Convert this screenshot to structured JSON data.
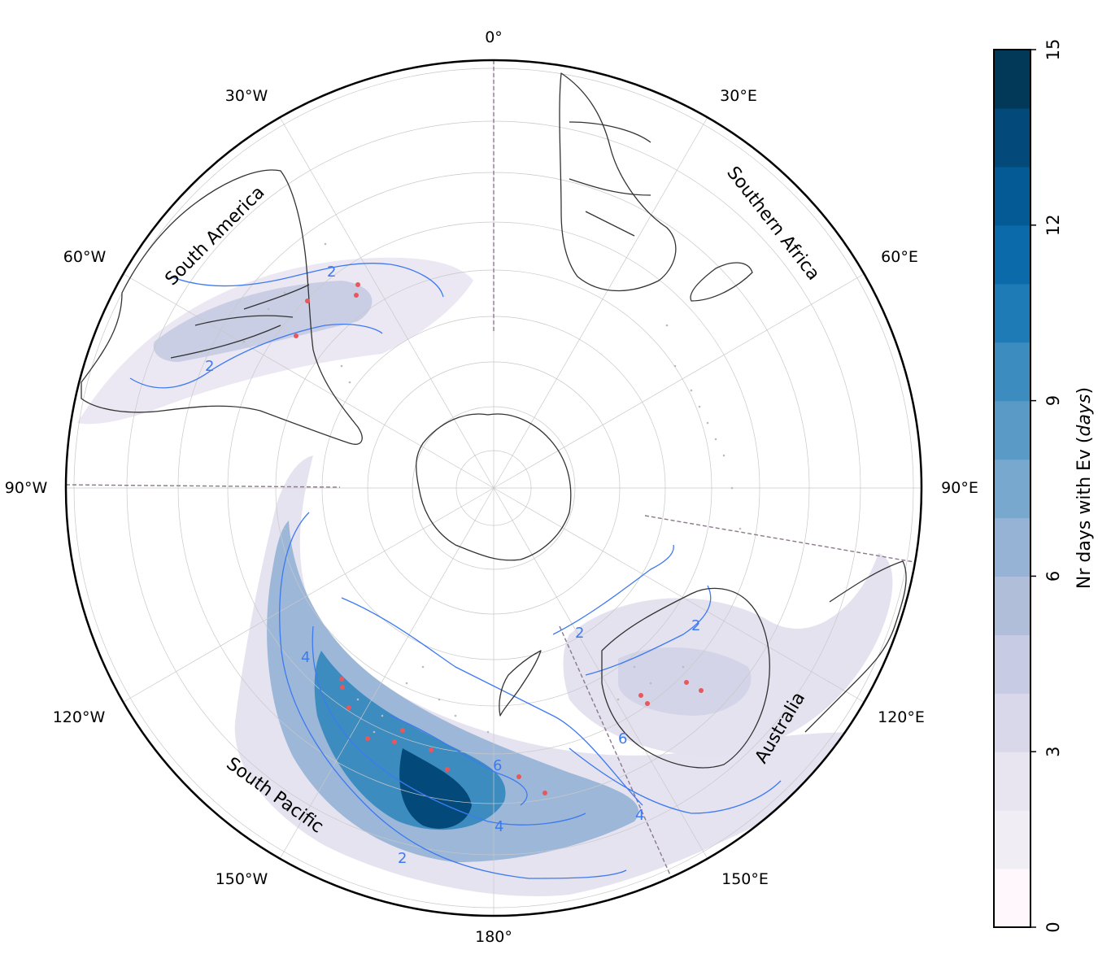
{
  "map": {
    "projection": "south-polar-stereographic",
    "meridian_labels": {
      "lon_0": "0°",
      "lon_30e": "30°E",
      "lon_60e": "60°E",
      "lon_90e": "90°E",
      "lon_120e": "120°E",
      "lon_150e": "150°E",
      "lon_180": "180°",
      "lon_150w": "150°W",
      "lon_120w": "120°W",
      "lon_90w": "90°W",
      "lon_60w": "60°W",
      "lon_30w": "30°W"
    },
    "region_labels": {
      "south_america": "South America",
      "southern_africa": "Southern Africa",
      "australia": "Australia",
      "south_pacific": "South Pacific"
    },
    "contour_labels": [
      "2",
      "2",
      "2",
      "4",
      "4",
      "4",
      "6",
      "6",
      "2",
      "2"
    ],
    "colors": {
      "contour": "#3d7af0",
      "coastline": "#333333",
      "sector_line": "#8a7a8a",
      "point": "#e8575a",
      "scatter": "#bbbbbb"
    }
  },
  "colorbar": {
    "label": "Nr days with Ev (days)",
    "label_main": "Nr days with Ev (",
    "label_unit": "days",
    "label_close": ")",
    "ticks": [
      "0",
      "3",
      "6",
      "9",
      "12",
      "15"
    ],
    "tick_values": [
      0,
      3,
      6,
      9,
      12,
      15
    ],
    "range": [
      0,
      15
    ],
    "levels": 15,
    "colors": [
      "#fff7fb",
      "#f1edf5",
      "#e8e5f0",
      "#d9d8ea",
      "#c7cbe3",
      "#b0bed9",
      "#96b3d6",
      "#78a8ce",
      "#5a9ac6",
      "#3d8cc0",
      "#1f7bb6",
      "#0a6aaa",
      "#045a94",
      "#034a7a",
      "#023858"
    ]
  }
}
